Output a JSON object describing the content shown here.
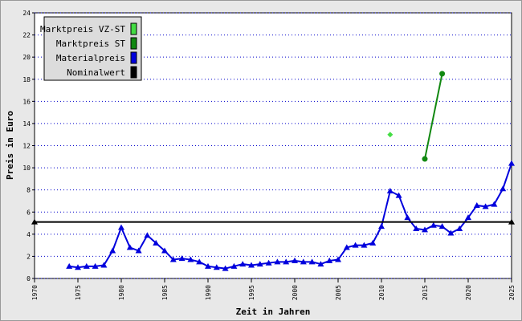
{
  "chart_data": {
    "type": "line",
    "xlabel": "Zeit in Jahren",
    "ylabel": "Preis in Euro",
    "xlim": [
      1970,
      2025
    ],
    "xticks": [
      1970,
      1975,
      1980,
      1985,
      1990,
      1995,
      2000,
      2005,
      2010,
      2015,
      2020,
      2025
    ],
    "ylim": [
      0,
      24
    ],
    "yticks": [
      0,
      2,
      4,
      6,
      8,
      10,
      12,
      14,
      16,
      18,
      20,
      22,
      24
    ],
    "grid": true,
    "legend": "top-left",
    "series": [
      {
        "name": "Marktpreis VZ-ST",
        "color": "#44dd44",
        "marker": "diamond",
        "x": [
          2011
        ],
        "values": [
          13.0
        ]
      },
      {
        "name": "Marktpreis ST",
        "color": "#118811",
        "marker": "circle",
        "x": [
          2015,
          2017
        ],
        "values": [
          10.8,
          18.5
        ]
      },
      {
        "name": "Materialpreis",
        "color": "#0000dd",
        "marker": "triangle",
        "x": [
          1974,
          1975,
          1976,
          1977,
          1978,
          1979,
          1980,
          1981,
          1982,
          1983,
          1984,
          1985,
          1986,
          1987,
          1988,
          1989,
          1990,
          1991,
          1992,
          1993,
          1994,
          1995,
          1996,
          1997,
          1998,
          1999,
          2000,
          2001,
          2002,
          2003,
          2004,
          2005,
          2006,
          2007,
          2008,
          2009,
          2010,
          2011,
          2012,
          2013,
          2014,
          2015,
          2016,
          2017,
          2018,
          2019,
          2020,
          2021,
          2022,
          2023,
          2024,
          2025
        ],
        "values": [
          1.1,
          1.0,
          1.1,
          1.1,
          1.2,
          2.5,
          4.6,
          2.8,
          2.5,
          3.9,
          3.2,
          2.5,
          1.7,
          1.8,
          1.7,
          1.5,
          1.1,
          1.0,
          0.9,
          1.1,
          1.3,
          1.2,
          1.3,
          1.4,
          1.5,
          1.5,
          1.6,
          1.5,
          1.5,
          1.3,
          1.6,
          1.7,
          2.8,
          3.0,
          3.0,
          3.2,
          4.7,
          7.9,
          7.5,
          5.5,
          4.5,
          4.4,
          4.8,
          4.7,
          4.1,
          4.5,
          5.5,
          6.6,
          6.5,
          6.7,
          8.1,
          10.4
        ]
      },
      {
        "name": "Nominalwert",
        "color": "#000000",
        "marker": "triangle",
        "x": [
          1970,
          2025
        ],
        "values": [
          5.1,
          5.1
        ]
      }
    ]
  }
}
